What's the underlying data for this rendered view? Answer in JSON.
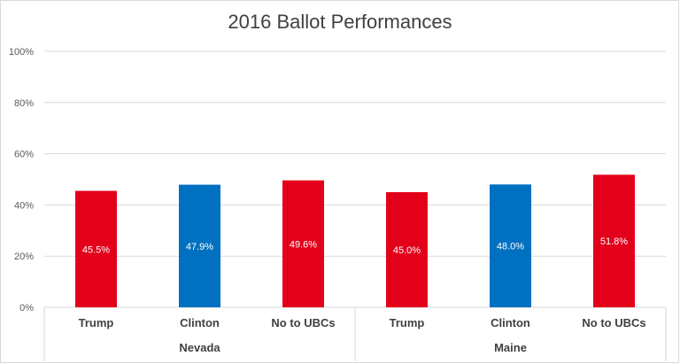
{
  "chart_data": {
    "type": "bar",
    "title": "2016 Ballot Performances",
    "ylim": [
      0,
      100
    ],
    "yticks": [
      0,
      20,
      40,
      60,
      80,
      100
    ],
    "ytick_labels": [
      "0%",
      "20%",
      "40%",
      "60%",
      "80%",
      "100%"
    ],
    "grid": true,
    "legend": "none",
    "groups": [
      {
        "name": "Nevada",
        "categories": [
          "Trump",
          "Clinton",
          "No to UBCs"
        ],
        "values": [
          45.5,
          47.9,
          49.6
        ],
        "labels": [
          "45.5%",
          "47.9%",
          "49.6%"
        ],
        "colors": [
          "#e3001b",
          "#0070c0",
          "#e3001b"
        ]
      },
      {
        "name": "Maine",
        "categories": [
          "Trump",
          "Clinton",
          "No to UBCs"
        ],
        "values": [
          45.0,
          48.0,
          51.8
        ],
        "labels": [
          "45.0%",
          "48.0%",
          "51.8%"
        ],
        "colors": [
          "#e3001b",
          "#0070c0",
          "#e3001b"
        ]
      }
    ]
  }
}
